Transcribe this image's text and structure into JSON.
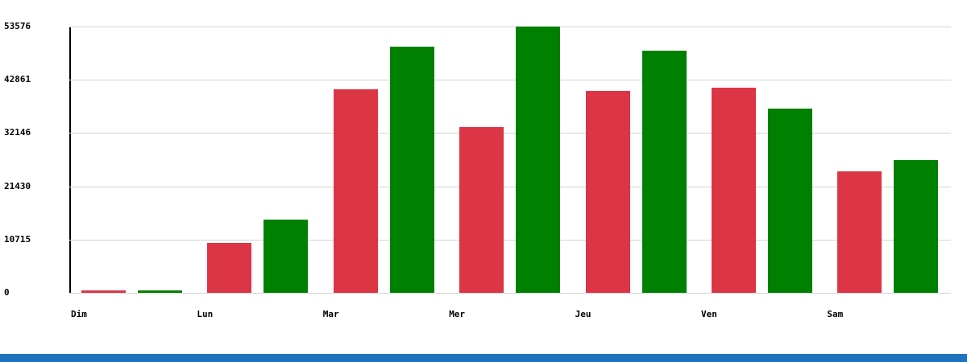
{
  "chart_data": {
    "type": "bar",
    "title": "",
    "xlabel": "",
    "ylabel": "",
    "categories": [
      "Dim",
      "Lun",
      "Mar",
      "Mer",
      "Jeu",
      "Ven",
      "Sam"
    ],
    "series": [
      {
        "name": "red_series",
        "color": "#dc3545",
        "values": [
          550,
          10000,
          40900,
          33300,
          40600,
          41200,
          24500
        ]
      },
      {
        "name": "green_series",
        "color": "#008000",
        "values": [
          450,
          14700,
          49500,
          53576,
          48700,
          37000,
          26700
        ]
      }
    ],
    "ylim": [
      0,
      53576
    ],
    "y_ticks": [
      "53576",
      "42861",
      "32146",
      "21430",
      "10715",
      "0"
    ],
    "grid": true,
    "legend": "none",
    "gridline_color": "#d4d4d4",
    "axis_color": "#000000"
  },
  "footer": {
    "accent_bar_color": "#1e73be"
  }
}
